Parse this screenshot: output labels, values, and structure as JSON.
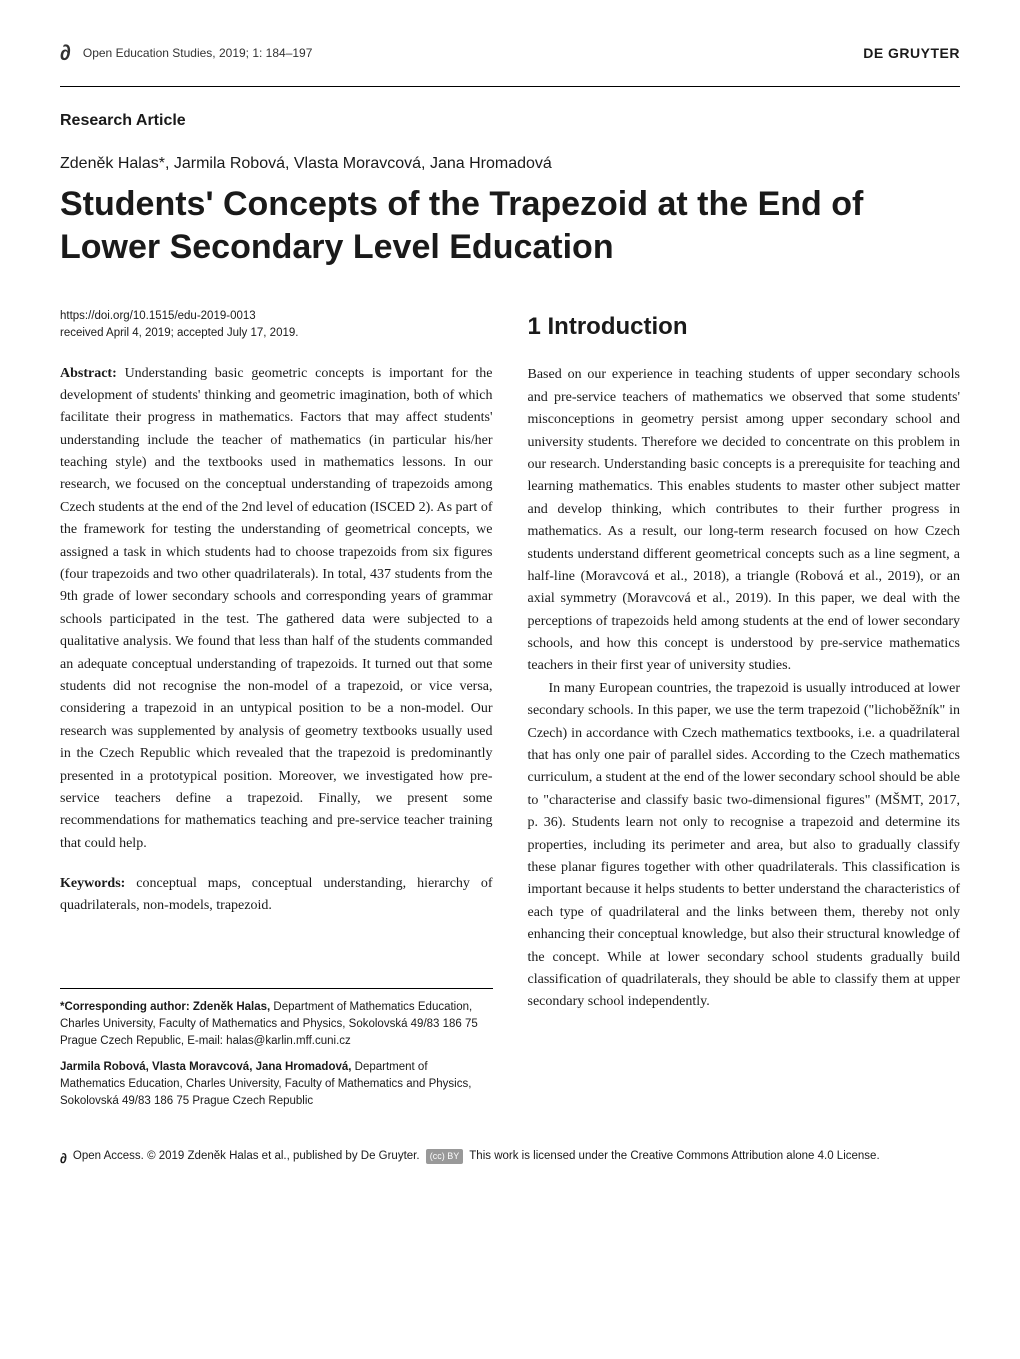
{
  "header": {
    "journal_ref": "Open Education Studies, 2019; 1: 184–197",
    "publisher": "DE GRUYTER",
    "oa_glyph": "∂"
  },
  "article": {
    "type": "Research Article",
    "authors": "Zdeněk Halas*, Jarmila Robová, Vlasta Moravcová, Jana Hromadová",
    "title": "Students' Concepts of the Trapezoid at the End of Lower Secondary Level Education",
    "doi": "https://doi.org/10.1515/edu-2019-0013",
    "dates": "received April 4, 2019; accepted July 17, 2019."
  },
  "abstract": {
    "label": "Abstract:",
    "text": "Understanding basic geometric concepts is important for the development of students' thinking and geometric imagination, both of which facilitate their progress in mathematics. Factors that may affect students' understanding include the teacher of mathematics (in particular his/her teaching style) and the textbooks used in mathematics lessons. In our research, we focused on the conceptual understanding of trapezoids among Czech students at the end of the 2nd level of education (ISCED 2). As part of the framework for testing the understanding of geometrical concepts, we assigned a task in which students had to choose trapezoids from six figures (four trapezoids and two other quadrilaterals). In total, 437 students from the 9th grade of lower secondary schools and corresponding years of grammar schools participated in the test. The gathered data were subjected to a qualitative analysis. We found that less than half of the students commanded an adequate conceptual understanding of trapezoids. It turned out that some students did not recognise the non-model of a trapezoid, or vice versa, considering a trapezoid in an untypical position to be a non-model. Our research was supplemented by analysis of geometry textbooks usually used in the Czech Republic which revealed that the trapezoid is predominantly presented in a prototypical position. Moreover, we investigated how pre-service teachers define a trapezoid. Finally, we present some recommendations for mathematics teaching and pre-service teacher training that could help."
  },
  "keywords": {
    "label": "Keywords:",
    "text": "conceptual maps, conceptual understanding, hierarchy of quadrilaterals, non-models, trapezoid."
  },
  "section1": {
    "heading": "1  Introduction",
    "para1": "Based on our experience in teaching students of upper secondary schools and pre-service teachers of mathematics we observed that some students' misconceptions in geometry persist among upper secondary school and university students. Therefore we decided to concentrate on this problem in our research. Understanding basic concepts is a prerequisite for teaching and learning mathematics. This enables students to master other subject matter and develop thinking, which contributes to their further progress in mathematics. As a result, our long-term research focused on how Czech students understand different geometrical concepts such as a line segment, a half-line (Moravcová et al., 2018), a triangle (Robová et al., 2019), or an axial symmetry (Moravcová et al., 2019). In this paper, we deal with the perceptions of trapezoids held among students at the end of lower secondary schools, and how this concept is understood by pre-service mathematics teachers in their first year of university studies.",
    "para2": "In many European countries, the trapezoid is usually introduced at lower secondary schools. In this paper, we use the term trapezoid (\"lichoběžník\" in Czech) in accordance with Czech mathematics textbooks, i.e. a quadrilateral that has only one pair of parallel sides. According to the Czech mathematics curriculum, a student at the end of the lower secondary school should be able to \"characterise and classify basic two-dimensional figures\" (MŠMT, 2017, p. 36). Students learn not only to recognise a trapezoid and determine its properties, including its perimeter and area, but also to gradually classify these planar figures together with other quadrilaterals. This classification is important because it helps students to better understand the characteristics of each type of quadrilateral and the links between them, thereby not only enhancing their conceptual knowledge, but also their structural knowledge of the concept. While at lower secondary school students gradually build classification of quadrilaterals, they should be able to classify them at upper secondary school independently."
  },
  "footnotes": {
    "corresponding_label": "*Corresponding author: Zdeněk Halas,",
    "corresponding_text": " Department of Mathematics Education, Charles University, Faculty of Mathematics and Physics, Sokolovská 49/83 186 75 Prague Czech Republic, E-mail: halas@karlin.mff.cuni.cz",
    "others_label": "Jarmila Robová, Vlasta Moravcová, Jana Hromadová,",
    "others_text": " Department of Mathematics Education, Charles University, Faculty of Mathematics and Physics, Sokolovská 49/83 186 75 Prague Czech Republic"
  },
  "license": {
    "oa_glyph": "∂",
    "text1": " Open Access. © 2019 Zdeněk Halas et al., published by De Gruyter. ",
    "cc_badge": "(cc) BY",
    "text2": " This work is licensed under the Creative Commons Attribution alone 4.0 License."
  }
}
